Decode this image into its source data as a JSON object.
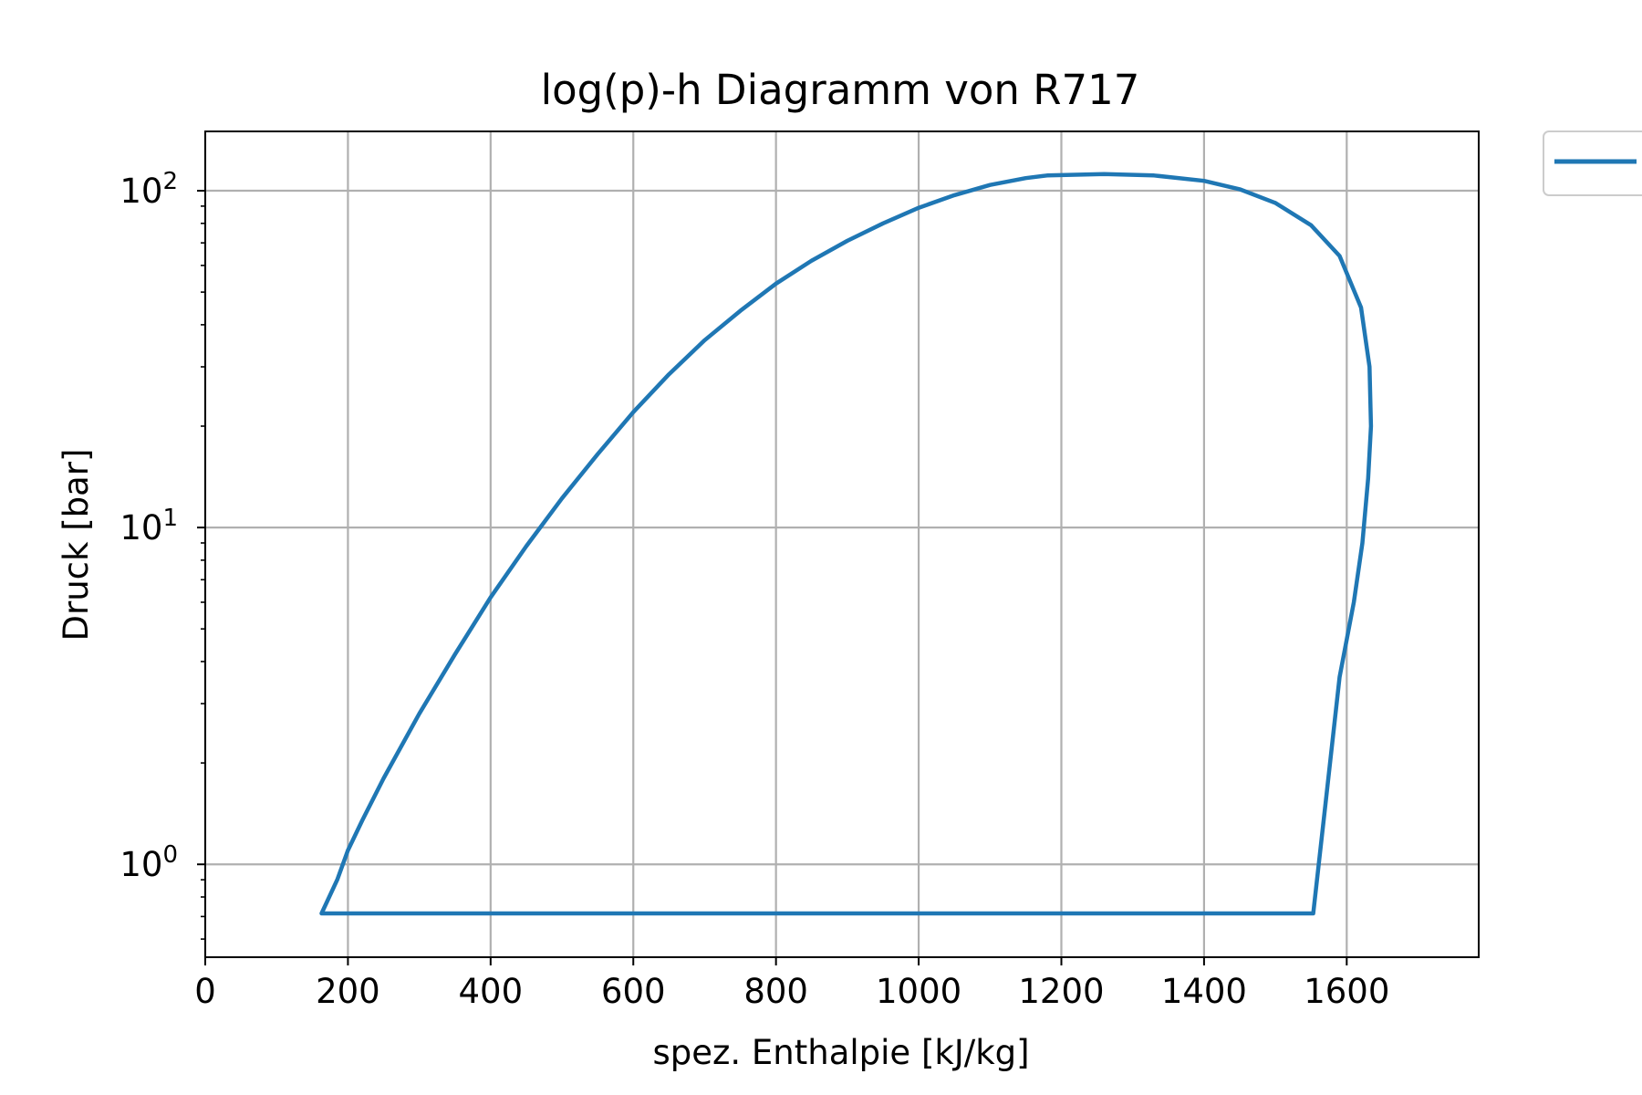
{
  "chart_data": {
    "type": "line",
    "title": "log(p)-h Diagramm von R717",
    "xlabel": "spez. Enthalpie [kJ/kg]",
    "ylabel": "Druck [bar]",
    "xlim": [
      0,
      1785
    ],
    "ylim": [
      0.53,
      150
    ],
    "yscale": "log",
    "grid": true,
    "legend": "top-right (outside plot)",
    "x_ticks": [
      "0",
      "200",
      "400",
      "600",
      "800",
      "1000",
      "1200",
      "1400",
      "1600"
    ],
    "y_ticks": [
      {
        "base": "10",
        "exp": "0"
      },
      {
        "base": "10",
        "exp": "1"
      },
      {
        "base": "10",
        "exp": "2"
      }
    ],
    "colors": {
      "series": "#1f77b4",
      "grid": "#b0b0b0",
      "axes": "#000000",
      "legend_border": "#cccccc"
    },
    "series": [
      {
        "label": "",
        "x": [
          163,
          185,
          200,
          220,
          250,
          300,
          350,
          400,
          450,
          500,
          550,
          600,
          650,
          700,
          750,
          800,
          850,
          900,
          950,
          1000,
          1050,
          1100,
          1150,
          1180,
          1260,
          1330,
          1400,
          1450,
          1500,
          1550,
          1590,
          1620,
          1632,
          1634,
          1630,
          1622,
          1610,
          1590,
          1570,
          1553,
          1553,
          163
        ],
        "y": [
          0.715,
          0.9,
          1.1,
          1.35,
          1.8,
          2.8,
          4.2,
          6.2,
          8.8,
          12.2,
          16.5,
          22,
          28.5,
          36,
          44,
          53,
          62,
          71,
          80,
          89,
          97,
          104,
          109,
          111,
          112,
          111,
          107,
          101,
          92,
          79,
          64,
          45,
          30,
          20,
          14,
          9,
          6,
          3.6,
          1.5,
          0.715,
          0.715,
          0.715
        ]
      }
    ]
  }
}
